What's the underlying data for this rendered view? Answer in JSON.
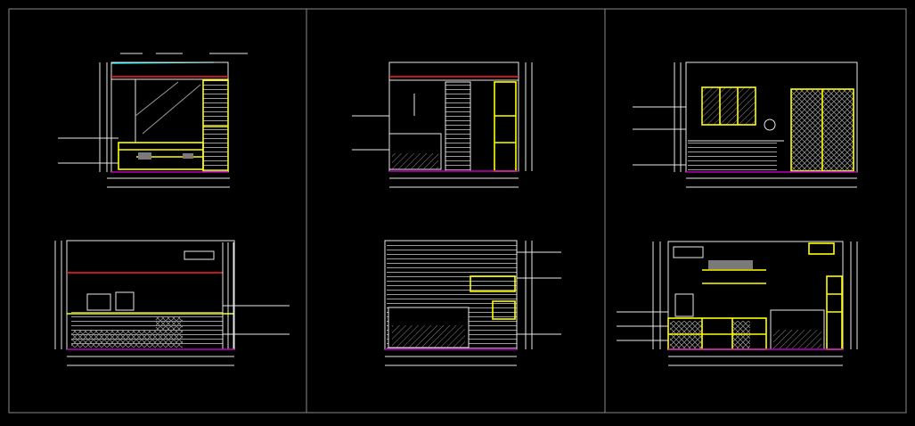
{
  "canvas": {
    "background": "#000000",
    "frame_color": "#8a8a8a"
  },
  "colors": {
    "outline": "#e8e8e8",
    "furniture": "#ffff00",
    "ceiling_line": "#ff2020",
    "floor_line": "#c000c0",
    "top_line": "#00ffff",
    "hatch": "#7a7a7a"
  },
  "panels": [
    {
      "views": [
        "elevation-a",
        "elevation-b"
      ]
    },
    {
      "views": [
        "elevation-c",
        "elevation-d"
      ]
    },
    {
      "views": [
        "elevation-e",
        "elevation-f"
      ]
    }
  ]
}
